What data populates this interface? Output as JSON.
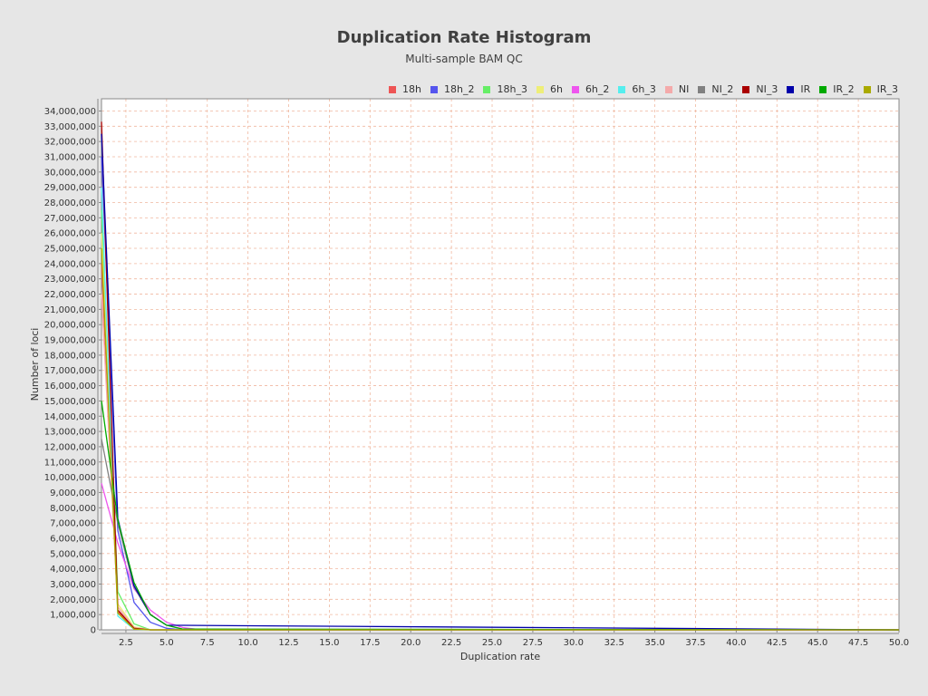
{
  "chart_data": {
    "type": "line",
    "title": "Duplication Rate Histogram",
    "subtitle": "Multi-sample BAM QC",
    "xlabel": "Duplication rate",
    "ylabel": "Number of loci",
    "xlim": [
      1,
      50
    ],
    "ylim": [
      0,
      34800000
    ],
    "xticks": [
      "2.5",
      "5.0",
      "7.5",
      "10.0",
      "12.5",
      "15.0",
      "17.5",
      "20.0",
      "22.5",
      "25.0",
      "27.5",
      "30.0",
      "32.5",
      "35.0",
      "37.5",
      "40.0",
      "42.5",
      "45.0",
      "47.5",
      "50.0"
    ],
    "yticks": [
      "0",
      "1,000,000",
      "2,000,000",
      "3,000,000",
      "4,000,000",
      "5,000,000",
      "6,000,000",
      "7,000,000",
      "8,000,000",
      "9,000,000",
      "10,000,000",
      "11,000,000",
      "12,000,000",
      "13,000,000",
      "14,000,000",
      "15,000,000",
      "16,000,000",
      "17,000,000",
      "18,000,000",
      "19,000,000",
      "20,000,000",
      "21,000,000",
      "22,000,000",
      "23,000,000",
      "24,000,000",
      "25,000,000",
      "26,000,000",
      "27,000,000",
      "28,000,000",
      "29,000,000",
      "30,000,000",
      "31,000,000",
      "32,000,000",
      "33,000,000",
      "34,000,000"
    ],
    "grid": true,
    "legend_position": "top-right",
    "series": [
      {
        "name": "18h",
        "color": "#ee5555",
        "x": [
          1,
          2,
          3,
          4,
          5,
          50
        ],
        "values": [
          24000000,
          1200000,
          100000,
          0,
          0,
          0
        ]
      },
      {
        "name": "18h_2",
        "color": "#5555ee",
        "x": [
          1,
          2,
          3,
          4,
          5,
          6,
          50
        ],
        "values": [
          31000000,
          6500000,
          1800000,
          500000,
          100000,
          0,
          0
        ]
      },
      {
        "name": "18h_3",
        "color": "#66ee66",
        "x": [
          1,
          2,
          3,
          4,
          5,
          50
        ],
        "values": [
          27500000,
          2500000,
          400000,
          0,
          0,
          0
        ]
      },
      {
        "name": "6h",
        "color": "#eeee77",
        "x": [
          1,
          2,
          3,
          4,
          5,
          50
        ],
        "values": [
          26000000,
          1700000,
          200000,
          0,
          0,
          0
        ]
      },
      {
        "name": "6h_2",
        "color": "#ee55ee",
        "x": [
          1,
          2,
          3,
          4,
          5,
          6,
          7,
          50
        ],
        "values": [
          9600000,
          5700000,
          2700000,
          1300000,
          500000,
          150000,
          20000,
          0
        ]
      },
      {
        "name": "6h_3",
        "color": "#55eeee",
        "x": [
          1,
          2,
          3,
          4,
          5,
          50
        ],
        "values": [
          29000000,
          900000,
          50000,
          0,
          0,
          0
        ]
      },
      {
        "name": "NI",
        "color": "#f4aaaa",
        "x": [
          1,
          2,
          3,
          4,
          5,
          50
        ],
        "values": [
          22000000,
          1500000,
          150000,
          0,
          0,
          0
        ]
      },
      {
        "name": "NI_2",
        "color": "#808080",
        "x": [
          1,
          2,
          3,
          4,
          5,
          6,
          50
        ],
        "values": [
          12500000,
          7000000,
          2800000,
          1000000,
          300000,
          50000,
          0
        ]
      },
      {
        "name": "NI_3",
        "color": "#aa0000",
        "x": [
          1,
          2,
          3,
          4,
          5,
          50
        ],
        "values": [
          33300000,
          1300000,
          100000,
          0,
          0,
          0
        ]
      },
      {
        "name": "IR",
        "color": "#0000aa",
        "x": [
          1,
          2,
          3,
          4,
          5,
          50
        ],
        "values": [
          32500000,
          7300000,
          2900000,
          1000000,
          300000,
          0
        ]
      },
      {
        "name": "IR_2",
        "color": "#00aa00",
        "x": [
          1,
          2,
          3,
          4,
          5,
          6,
          50
        ],
        "values": [
          15000000,
          7200000,
          3100000,
          1000000,
          300000,
          50000,
          0
        ]
      },
      {
        "name": "IR_3",
        "color": "#aaaa00",
        "x": [
          1,
          2,
          3,
          4,
          50
        ],
        "values": [
          25000000,
          1100000,
          50000,
          0,
          0
        ]
      }
    ]
  }
}
